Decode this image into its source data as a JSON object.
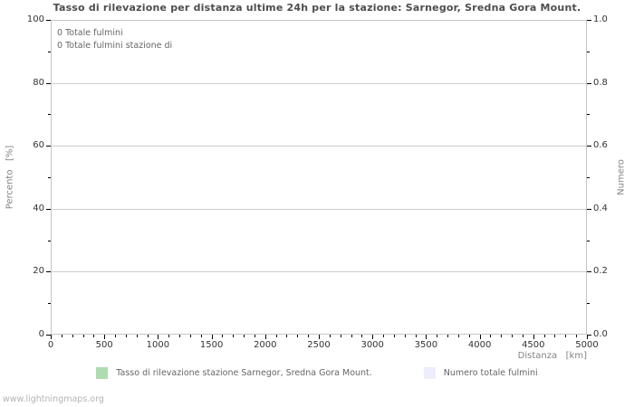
{
  "page": {
    "footer": "www.lightningmaps.org"
  },
  "chart_data": {
    "type": "bar",
    "title": "Tasso di rilevazione per distanza ultime 24h per la stazione: Sarnegor, Sredna Gora Mount.",
    "annotations": [
      "0 Totale fulmini",
      "0 Totale fulmini stazione di"
    ],
    "xlabel": "Distanza   [km]",
    "ylabel_left": "Percento   [%]",
    "ylabel_right": "Numero",
    "xlim": [
      0,
      5000
    ],
    "x_major_ticks": [
      0,
      500,
      1000,
      1500,
      2000,
      2500,
      3000,
      3500,
      4000,
      4500,
      5000
    ],
    "x_minor_step": 100,
    "ylim_left": [
      0,
      100
    ],
    "y_left_major_ticks": [
      0,
      20,
      40,
      60,
      80,
      100
    ],
    "y_left_minor_step": 10,
    "ylim_right": [
      0,
      1
    ],
    "y_right_major_ticks": [
      {
        "value": 0.0,
        "label": "0.0"
      },
      {
        "value": 0.2,
        "label": "0.2"
      },
      {
        "value": 0.4,
        "label": "0.4"
      },
      {
        "value": 0.6,
        "label": "0.6"
      },
      {
        "value": 0.8,
        "label": "0.8"
      },
      {
        "value": 1.0,
        "label": "1.0"
      }
    ],
    "y_right_minor_step": 0.1,
    "grid": "horizontal-major-only",
    "legend_position": "bottom-center",
    "series": [
      {
        "name": "Tasso di rilevazione stazione Sarnegor, Sredna Gora Mount.",
        "color": "#aedcae",
        "axis": "left",
        "values": []
      },
      {
        "name": "Numero totale fulmini",
        "color": "#ededfb",
        "axis": "right",
        "values": []
      }
    ],
    "colors": {
      "background": "#ffffff",
      "title": "#4d4d4d",
      "axis_label": "#848484",
      "tick_label": "#333333",
      "tick_mark": "#000000",
      "grid": "#cdcdcd",
      "border": "#c6c6c6",
      "annotation": "#666666",
      "legend_text": "#666666",
      "footer": "#b3b3b3"
    }
  }
}
